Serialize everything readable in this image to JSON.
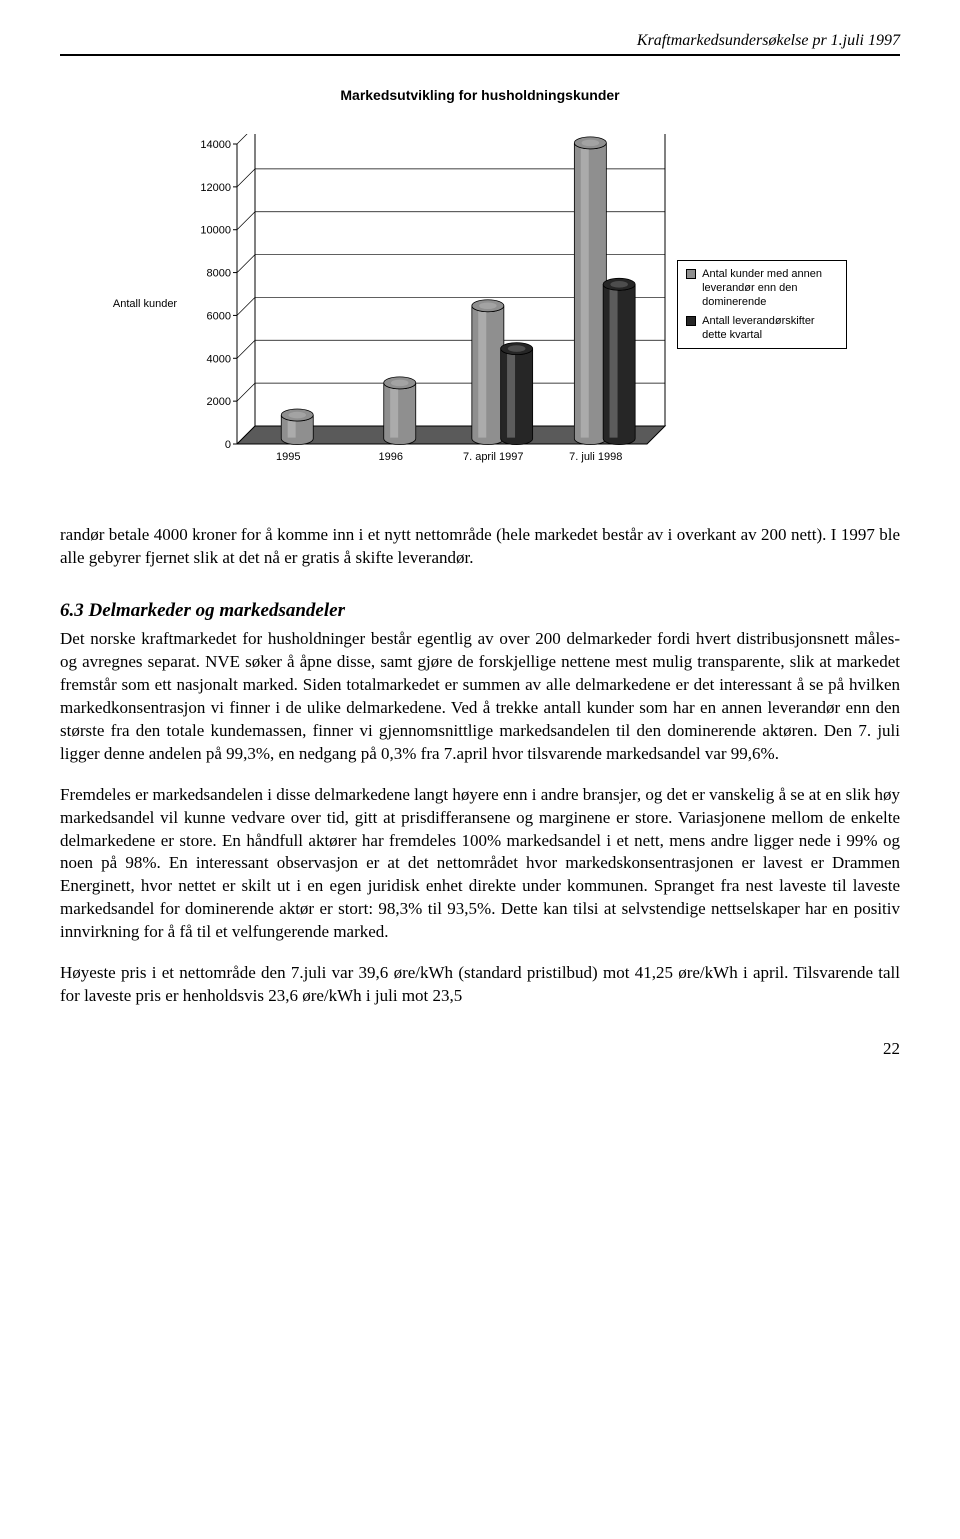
{
  "running_head": "Kraftmarkedsundersøkelse pr 1.juli 1997",
  "chart": {
    "type": "bar-3d-clustered",
    "title": "Markedsutvikling for husholdningskunder",
    "y_axis_label": "Antall kunder",
    "categories": [
      "1995",
      "1996",
      "7. april 1997",
      "7. juli 1998"
    ],
    "series": [
      {
        "name": "Antal kunder med annen leverandør enn den dominerende",
        "values": [
          1100,
          2600,
          6200,
          13800
        ],
        "fill": "#8f8f8f"
      },
      {
        "name": "Antall leverandørskifter dette kvartal",
        "values": [
          null,
          null,
          4200,
          7200
        ],
        "fill": "#262626"
      }
    ],
    "ylim": [
      0,
      14000
    ],
    "ytick_step": 2000,
    "background": "#ffffff",
    "grid_color": "#000000",
    "floor_color": "#5a5a5a",
    "perspective_offset": 18
  },
  "para1": "randør betale 4000 kroner for å komme inn i et nytt nettområde (hele markedet består av i overkant av 200 nett). I 1997 ble alle gebyrer fjernet slik at det nå er gratis å skifte leverandør.",
  "section_heading": "6.3 Delmarkeder og markedsandeler",
  "para2": "Det norske kraftmarkedet for husholdninger består egentlig av over 200 delmarkeder fordi hvert distribusjonsnett måles- og avregnes separat. NVE søker å åpne disse, samt gjøre de forskjellige nettene mest mulig transparente, slik at markedet fremstår som ett nasjonalt marked. Siden totalmarkedet er summen av alle delmarkedene er det interessant å se på hvilken markedkonsentrasjon vi finner i de ulike delmarkedene. Ved å trekke antall kunder som har en annen leverandør enn den største fra den totale kundemassen, finner vi gjennomsnittlige markedsandelen til den dominerende aktøren. Den 7. juli ligger denne andelen på 99,3%, en nedgang på 0,3% fra 7.april hvor tilsvarende markedsandel var 99,6%.",
  "para3": "Fremdeles er markedsandelen i disse delmarkedene langt høyere enn i andre bransjer, og det er vanskelig å se at en slik høy markedsandel vil kunne vedvare over tid, gitt at prisdifferansene og marginene er store. Variasjonene mellom de enkelte delmarkedene er store. En håndfull aktører har fremdeles 100% markedsandel i et nett, mens andre ligger nede i 99% og noen på 98%. En interessant observasjon er at det nettområdet hvor markedskonsentrasjonen er lavest er Drammen Energinett, hvor nettet er skilt ut i en egen juridisk enhet direkte under kommunen. Spranget fra nest laveste til laveste markedsandel for dominerende aktør er stort: 98,3% til 93,5%. Dette kan tilsi at selvstendige nettselskaper har en positiv innvirkning for å få til et velfungerende marked.",
  "para4": "Høyeste pris i et nettområde den 7.juli var 39,6 øre/kWh (standard pristilbud) mot 41,25 øre/kWh i april. Tilsvarende tall for laveste pris er henholdsvis 23,6 øre/kWh i juli mot 23,5",
  "page_number": "22"
}
